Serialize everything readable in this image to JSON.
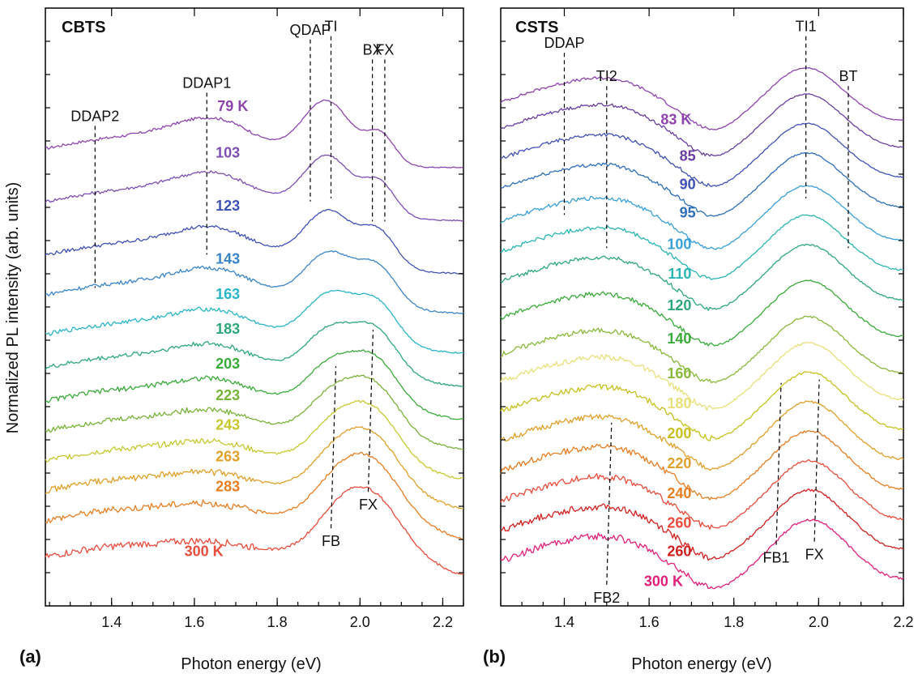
{
  "figure": {
    "ylabel": "Normalized PL intensity (arb. units)"
  },
  "chart_data": [
    {
      "type": "line",
      "panel_label": "(a)",
      "material": "CBTS",
      "xlabel": "Photon energy (eV)",
      "ylabel": "Normalized PL intensity (arb. units)",
      "xlim": [
        1.24,
        2.25
      ],
      "xticks": [
        "1.4",
        "1.6",
        "1.8",
        "2.0",
        "2.2"
      ],
      "xtick_values": [
        1.4,
        1.6,
        1.8,
        2.0,
        2.2
      ],
      "ylim": [
        0,
        18
      ],
      "grid": false,
      "series": [
        {
          "name": "79 K",
          "color": "#8e44ad",
          "offset": 13.2,
          "label_x": 1.73,
          "label_y": 14.9
        },
        {
          "name": "103",
          "color": "#7d4fb0",
          "offset": 11.6,
          "label_x": 1.71,
          "label_y": 13.5
        },
        {
          "name": "123",
          "color": "#3f51b5",
          "offset": 10.0,
          "label_x": 1.71,
          "label_y": 11.9
        },
        {
          "name": "143",
          "color": "#3a86c8",
          "offset": 8.8,
          "label_x": 1.71,
          "label_y": 10.3
        },
        {
          "name": "163",
          "color": "#2bb5c8",
          "offset": 7.6,
          "label_x": 1.71,
          "label_y": 9.25
        },
        {
          "name": "183",
          "color": "#2ea87a",
          "offset": 6.6,
          "label_x": 1.71,
          "label_y": 8.2
        },
        {
          "name": "203",
          "color": "#3aaa3a",
          "offset": 5.6,
          "label_x": 1.71,
          "label_y": 7.15
        },
        {
          "name": "223",
          "color": "#7ab33a",
          "offset": 4.7,
          "label_x": 1.71,
          "label_y": 6.2
        },
        {
          "name": "243",
          "color": "#c8c832",
          "offset": 3.8,
          "label_x": 1.71,
          "label_y": 5.3
        },
        {
          "name": "263",
          "color": "#e0a02a",
          "offset": 2.9,
          "label_x": 1.71,
          "label_y": 4.35
        },
        {
          "name": "283",
          "color": "#e67e22",
          "offset": 2.0,
          "label_x": 1.71,
          "label_y": 3.45
        },
        {
          "name": "300 K",
          "color": "#e74c3c",
          "offset": 0.9,
          "label_x": 1.67,
          "label_y": 1.5
        }
      ],
      "annotations": [
        {
          "text": "DDAP2",
          "x": 1.36,
          "y": 14.6
        },
        {
          "text": "DDAP1",
          "x": 1.63,
          "y": 15.6
        },
        {
          "text": "QDAP",
          "x": 1.88,
          "y": 17.2
        },
        {
          "text": "TI",
          "x": 1.93,
          "y": 17.3
        },
        {
          "text": "BX",
          "x": 2.03,
          "y": 16.6
        },
        {
          "text": "FX",
          "x": 2.06,
          "y": 16.6
        },
        {
          "text": "FB",
          "x": 1.93,
          "y": 1.8
        },
        {
          "text": "FX",
          "x": 2.02,
          "y": 2.9
        }
      ]
    },
    {
      "type": "line",
      "panel_label": "(b)",
      "material": "CSTS",
      "xlabel": "Photon energy (eV)",
      "xlim": [
        1.25,
        2.2
      ],
      "xticks": [
        "1.4",
        "1.6",
        "1.8",
        "2.0",
        "2.2"
      ],
      "xtick_values": [
        1.4,
        1.6,
        1.8,
        2.0,
        2.2
      ],
      "ylim": [
        0,
        18
      ],
      "grid": false,
      "series": [
        {
          "name": "83 K",
          "color": "#8e44ad",
          "offset": 14.6,
          "label_x": 1.7,
          "label_y": 14.5
        },
        {
          "name": "85",
          "color": "#6a3fa0",
          "offset": 13.8,
          "label_x": 1.71,
          "label_y": 13.4
        },
        {
          "name": "90",
          "color": "#3f51b5",
          "offset": 12.9,
          "label_x": 1.71,
          "label_y": 12.55
        },
        {
          "name": "95",
          "color": "#2f6fb8",
          "offset": 12.0,
          "label_x": 1.71,
          "label_y": 11.7
        },
        {
          "name": "100",
          "color": "#3aa0d8",
          "offset": 11.0,
          "label_x": 1.7,
          "label_y": 10.75
        },
        {
          "name": "110",
          "color": "#2bb5b5",
          "offset": 10.1,
          "label_x": 1.7,
          "label_y": 9.85
        },
        {
          "name": "120",
          "color": "#2ea87a",
          "offset": 9.2,
          "label_x": 1.7,
          "label_y": 8.9
        },
        {
          "name": "140",
          "color": "#3aaa3a",
          "offset": 8.1,
          "label_x": 1.7,
          "label_y": 7.9
        },
        {
          "name": "160",
          "color": "#8ab83a",
          "offset": 7.0,
          "label_x": 1.7,
          "label_y": 6.85
        },
        {
          "name": "180",
          "color": "#e8e07a",
          "offset": 6.2,
          "label_x": 1.7,
          "label_y": 5.95
        },
        {
          "name": "200",
          "color": "#c8c020",
          "offset": 5.3,
          "label_x": 1.7,
          "label_y": 5.05
        },
        {
          "name": "220",
          "color": "#e0a02a",
          "offset": 4.4,
          "label_x": 1.7,
          "label_y": 4.15
        },
        {
          "name": "240",
          "color": "#e67e22",
          "offset": 3.5,
          "label_x": 1.7,
          "label_y": 3.25
        },
        {
          "name": "260",
          "color": "#e74c3c",
          "offset": 2.6,
          "label_x": 1.7,
          "label_y": 2.35
        },
        {
          "name": "260",
          "color": "#d02020",
          "offset": 1.7,
          "label_x": 1.7,
          "label_y": 1.5
        },
        {
          "name": "300 K",
          "color": "#e0207a",
          "offset": 0.8,
          "label_x": 1.68,
          "label_y": 0.6
        }
      ],
      "annotations": [
        {
          "text": "DDAP",
          "x": 1.4,
          "y": 16.8
        },
        {
          "text": "TI2",
          "x": 1.5,
          "y": 15.8
        },
        {
          "text": "TI1",
          "x": 1.97,
          "y": 17.3
        },
        {
          "text": "BT",
          "x": 2.07,
          "y": 15.8
        },
        {
          "text": "FB1",
          "x": 1.9,
          "y": 1.3
        },
        {
          "text": "FX",
          "x": 1.99,
          "y": 1.4
        },
        {
          "text": "FB2",
          "x": 1.5,
          "y": 0.1
        }
      ]
    }
  ]
}
